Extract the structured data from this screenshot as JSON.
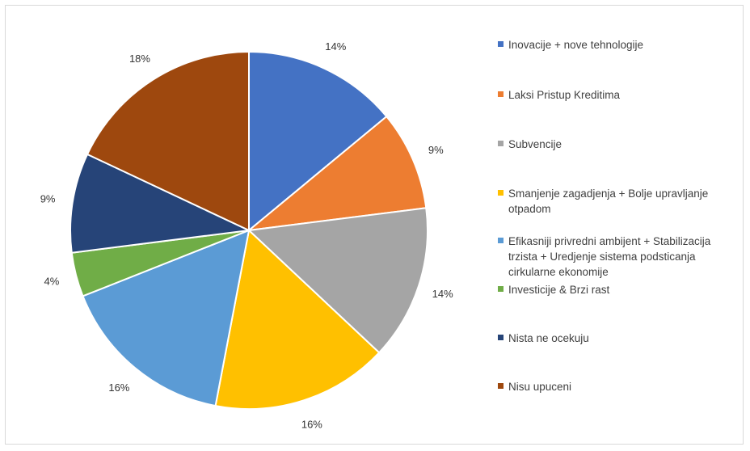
{
  "chart_data": {
    "type": "pie",
    "categories": [
      "Inovacije + nove tehnologije",
      "Laksi Pristup Kreditima",
      "Subvencije",
      "Smanjenje zagadjenja + Bolje upravljanje otpadom",
      "Efikasniji privredni ambijent + Stabilizacija trzista + Uredjenje sistema podsticanja cirkularne ekonomije",
      "Investicije & Brzi rast",
      "Nista ne ocekuju",
      "Nisu upuceni"
    ],
    "values": [
      14,
      9,
      14,
      16,
      16,
      4,
      9,
      18
    ],
    "labels": [
      "14%",
      "9%",
      "14%",
      "16%",
      "16%",
      "4%",
      "9%",
      "18%"
    ],
    "colors": [
      "#4472C4",
      "#ED7D31",
      "#A5A5A5",
      "#FFC000",
      "#5B9BD5",
      "#70AD47",
      "#264478",
      "#9E480E"
    ],
    "legend": "right"
  }
}
